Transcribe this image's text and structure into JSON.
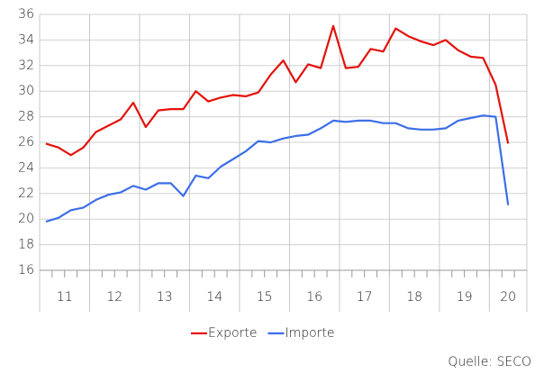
{
  "chart_data": {
    "type": "line",
    "categories": [
      null,
      null,
      null,
      null,
      null,
      null,
      null,
      null,
      null,
      null,
      null,
      null,
      null,
      null,
      null,
      null,
      null,
      null,
      null,
      null,
      null,
      null,
      null,
      null,
      null,
      null,
      null,
      null,
      null,
      null,
      null,
      null,
      null,
      null,
      null,
      null,
      null,
      null,
      null
    ],
    "x_groups": [
      "11",
      "12",
      "13",
      "14",
      "15",
      "16",
      "17",
      "18",
      "19",
      "20"
    ],
    "series": [
      {
        "name": "Exporte",
        "color": "#e3120b",
        "values": [
          25.9,
          25.6,
          25.0,
          25.6,
          26.8,
          27.3,
          27.8,
          29.1,
          27.2,
          28.5,
          28.6,
          28.6,
          30.0,
          29.2,
          29.5,
          29.7,
          29.6,
          29.9,
          31.3,
          32.4,
          30.7,
          32.1,
          31.8,
          35.1,
          31.8,
          31.9,
          33.3,
          33.1,
          34.9,
          34.3,
          33.9,
          33.6,
          34.0,
          33.2,
          32.7,
          32.6,
          30.5,
          25.9,
          null
        ]
      },
      {
        "name": "Importe",
        "color": "#3c6ee8",
        "values": [
          19.8,
          20.1,
          20.7,
          20.9,
          21.5,
          21.9,
          22.1,
          22.6,
          22.3,
          22.8,
          22.8,
          21.8,
          23.4,
          23.2,
          24.1,
          24.7,
          25.3,
          26.1,
          26.0,
          26.3,
          26.5,
          26.6,
          27.1,
          27.7,
          27.6,
          27.7,
          27.7,
          27.5,
          27.5,
          27.1,
          27.0,
          27.0,
          27.1,
          27.7,
          27.9,
          28.1,
          28.0,
          21.1,
          null
        ]
      }
    ],
    "ylim": [
      16,
      36
    ],
    "yticks": [
      16,
      18,
      20,
      22,
      24,
      26,
      28,
      30,
      32,
      34,
      36
    ],
    "grid": true,
    "legend": "bottom",
    "source": "Quelle: SECO"
  }
}
